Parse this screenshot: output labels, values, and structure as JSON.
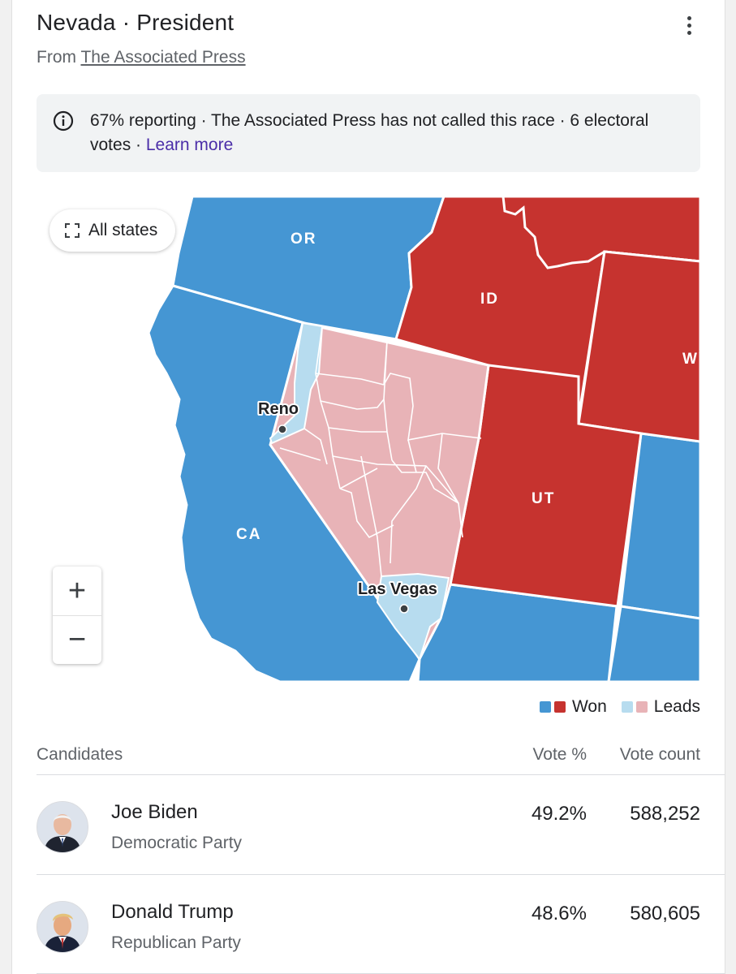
{
  "header": {
    "title": "Nevada · President",
    "source_prefix": "From",
    "source_link": "The Associated Press"
  },
  "info": {
    "text": "67% reporting · The Associated Press has not called this race · 6 electoral votes · ",
    "link": "Learn more",
    "icon": "info-icon"
  },
  "map": {
    "all_states_label": "All states",
    "all_states_icon": "expand-icon",
    "zoom_in_label": "+",
    "zoom_out_label": "−",
    "state_labels": {
      "or": "OR",
      "id": "ID",
      "wy": "WY",
      "ut": "UT",
      "ca": "CA"
    },
    "cities": {
      "reno": "Reno",
      "las_vegas": "Las Vegas"
    },
    "colors": {
      "dem_won": "#4596d3",
      "rep_won": "#c6332f",
      "dem_leads": "#b7dcef",
      "rep_leads": "#e8b3b7"
    }
  },
  "legend": {
    "won_label": "Won",
    "leads_label": "Leads"
  },
  "table": {
    "headers": {
      "candidates": "Candidates",
      "vote_pct": "Vote %",
      "vote_count": "Vote count"
    },
    "rows": [
      {
        "name": "Joe Biden",
        "party": "Democratic Party",
        "vote_pct": "49.2%",
        "vote_count": "588,252"
      },
      {
        "name": "Donald Trump",
        "party": "Republican Party",
        "vote_pct": "48.6%",
        "vote_count": "580,605"
      }
    ]
  }
}
